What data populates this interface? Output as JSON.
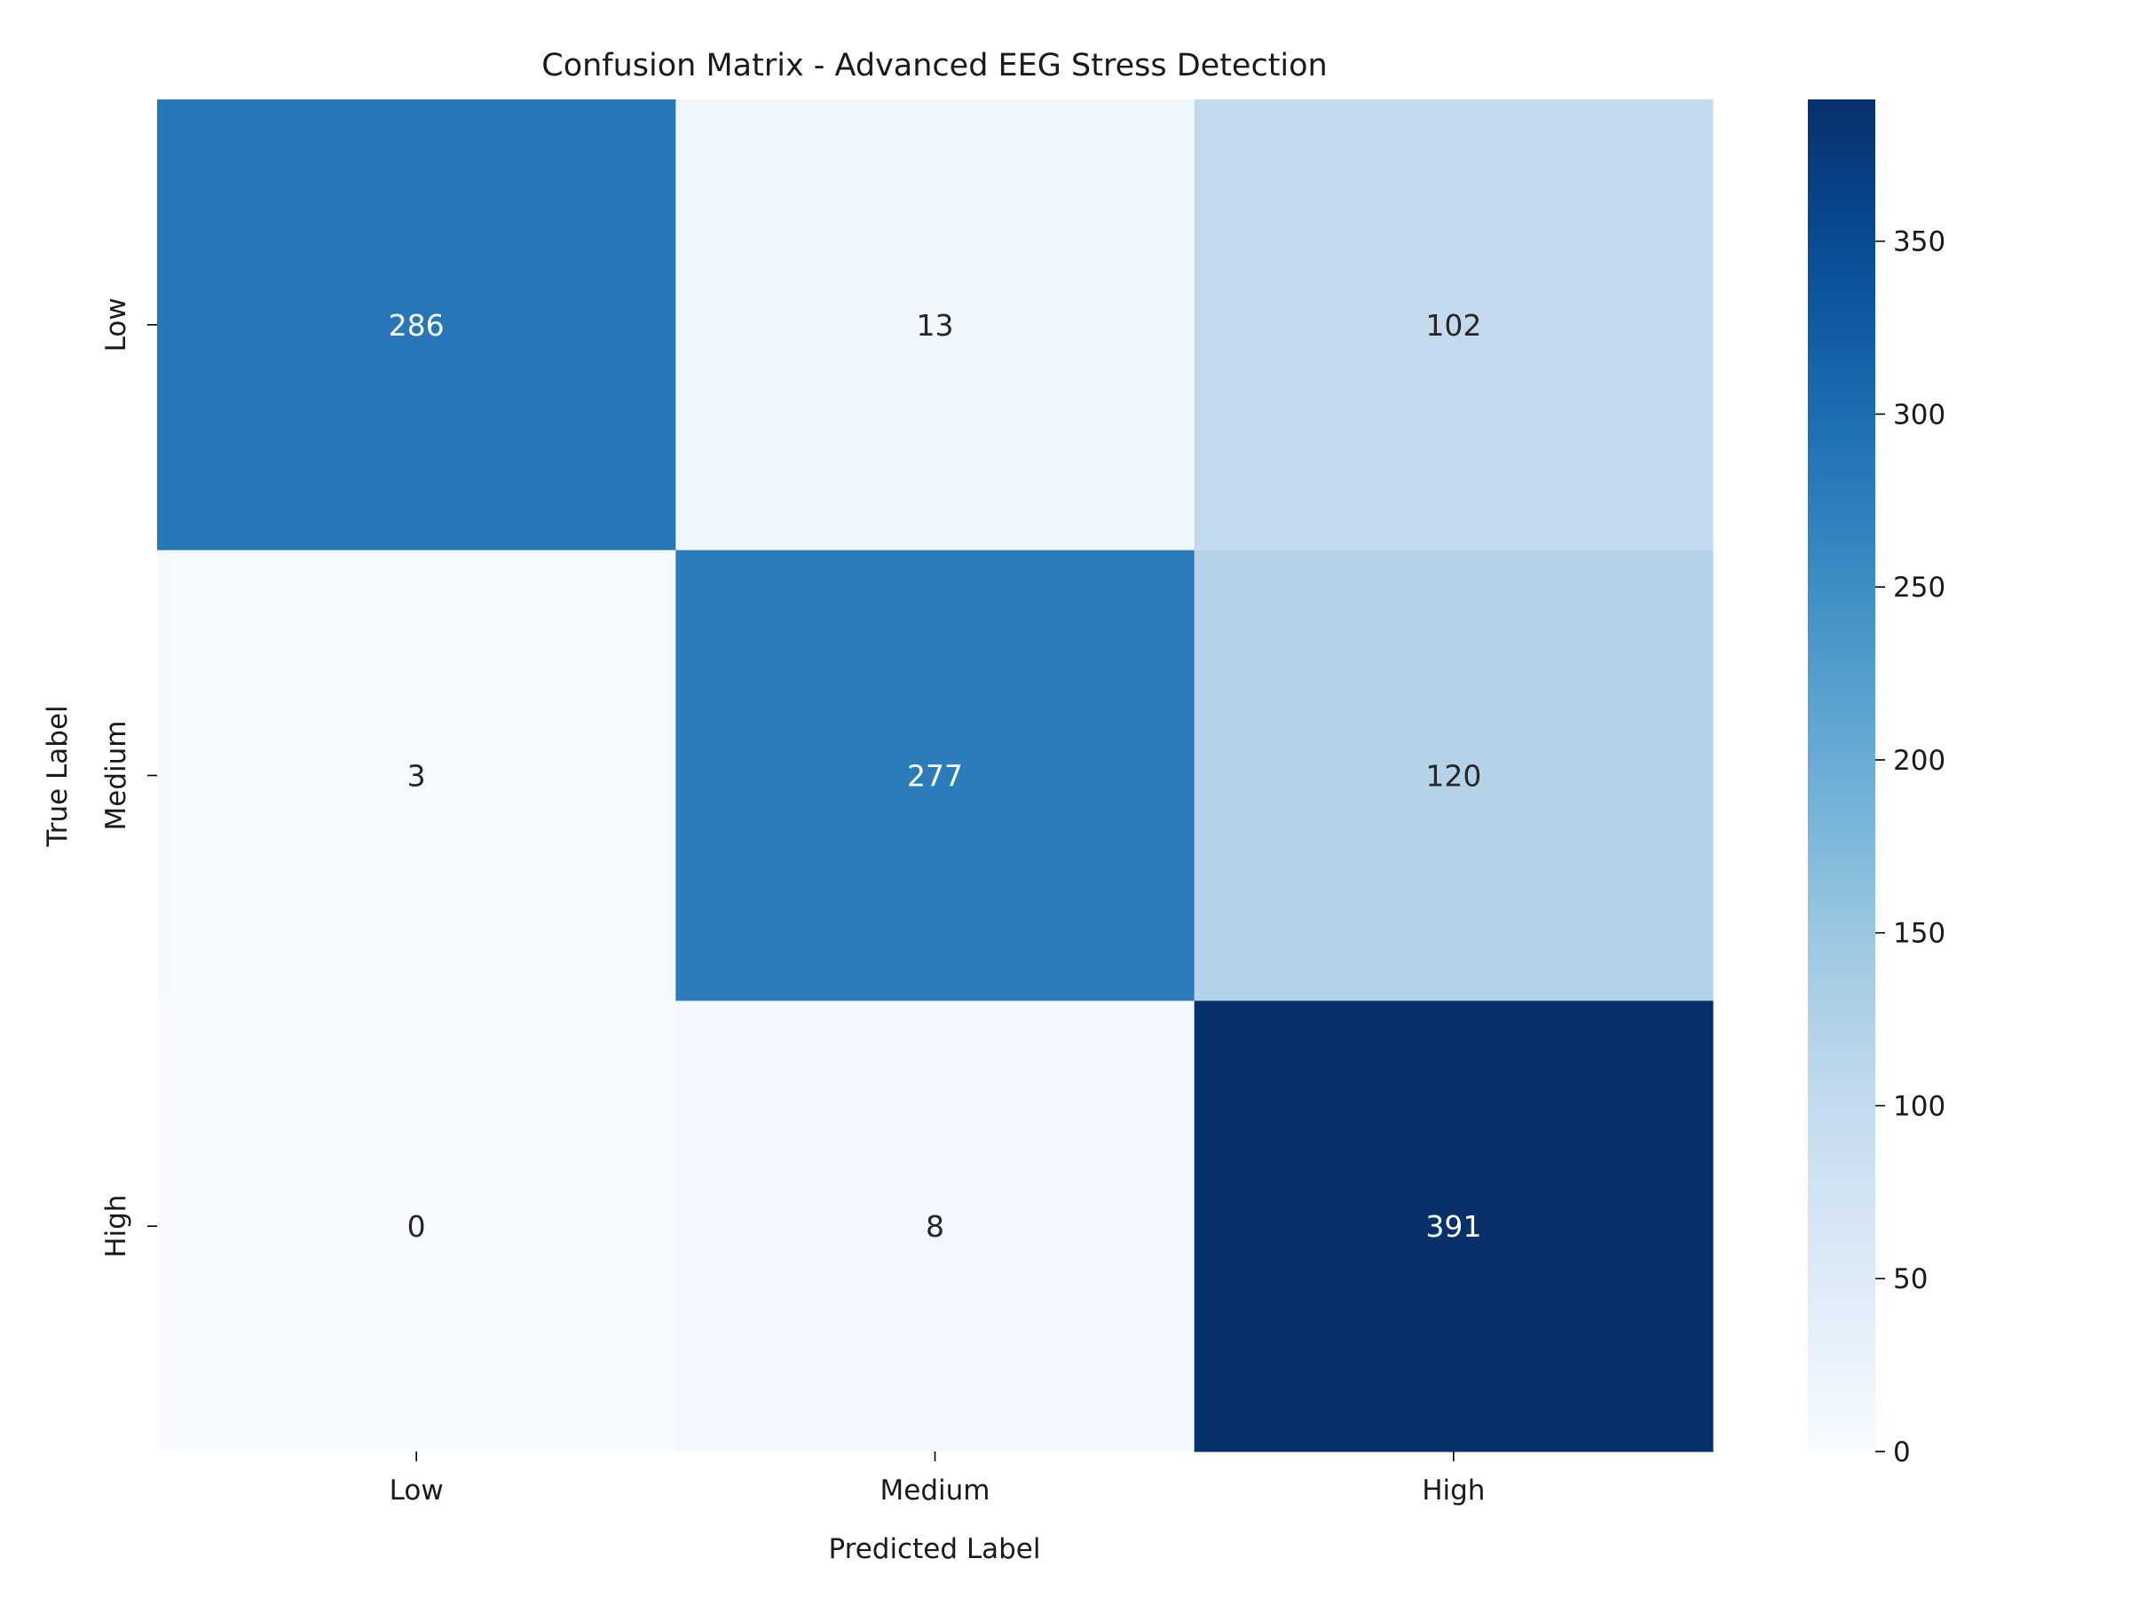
{
  "chart_data": {
    "type": "heatmap",
    "title": "Confusion Matrix - Advanced EEG Stress Detection",
    "xlabel": "Predicted Label",
    "ylabel": "True Label",
    "x_categories": [
      "Low",
      "Medium",
      "High"
    ],
    "y_categories": [
      "Low",
      "Medium",
      "High"
    ],
    "values": [
      [
        286,
        13,
        102
      ],
      [
        3,
        277,
        120
      ],
      [
        0,
        8,
        391
      ]
    ],
    "colormap": "Blues",
    "colorbar": {
      "min": 0,
      "max": 391,
      "ticks": [
        0,
        50,
        100,
        150,
        200,
        250,
        300,
        350
      ]
    },
    "grid": false,
    "annotations": true
  }
}
